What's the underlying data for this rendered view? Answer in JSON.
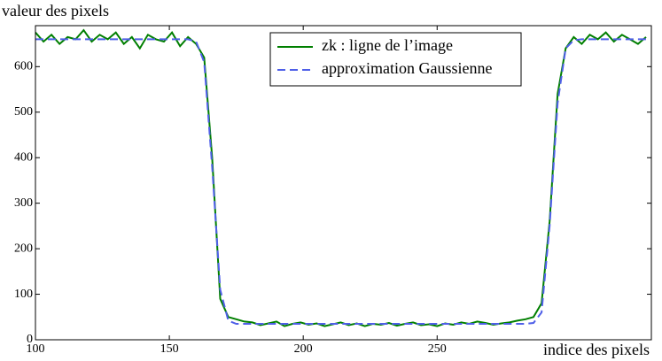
{
  "chart_data": {
    "type": "line",
    "xlabel": "indice des pixels",
    "ylabel": "valeur des pixels",
    "x": [
      100,
      103,
      106,
      109,
      112,
      115,
      118,
      121,
      124,
      127,
      130,
      133,
      136,
      139,
      142,
      145,
      148,
      151,
      154,
      157,
      160,
      163,
      166,
      169,
      172,
      175,
      178,
      181,
      184,
      187,
      190,
      193,
      196,
      199,
      202,
      205,
      208,
      211,
      214,
      217,
      220,
      223,
      226,
      229,
      232,
      235,
      238,
      241,
      244,
      247,
      250,
      253,
      256,
      259,
      262,
      265,
      268,
      271,
      274,
      277,
      280,
      283,
      286,
      289,
      292,
      295,
      298,
      301,
      304,
      307,
      310,
      313,
      316,
      319,
      322,
      325,
      328
    ],
    "series": [
      {
        "name": "zk : ligne de l’image",
        "color": "#007f00",
        "dash": false,
        "values": [
          675,
          655,
          670,
          650,
          665,
          660,
          680,
          655,
          670,
          660,
          675,
          650,
          665,
          640,
          670,
          660,
          655,
          675,
          645,
          665,
          650,
          620,
          400,
          90,
          50,
          45,
          40,
          38,
          32,
          36,
          40,
          30,
          35,
          38,
          33,
          36,
          30,
          34,
          38,
          32,
          36,
          30,
          35,
          33,
          37,
          31,
          35,
          38,
          32,
          34,
          30,
          36,
          33,
          38,
          35,
          40,
          37,
          33,
          36,
          38,
          42,
          45,
          50,
          80,
          260,
          540,
          640,
          665,
          650,
          670,
          660,
          675,
          655,
          670,
          660,
          650,
          665
        ]
      },
      {
        "name": "approximation Gaussienne",
        "color": "#4f5fe8",
        "dash": true,
        "values": [
          660,
          660,
          660,
          660,
          660,
          660,
          660,
          660,
          660,
          660,
          660,
          660,
          660,
          660,
          660,
          660,
          660,
          660,
          660,
          660,
          655,
          610,
          380,
          110,
          42,
          35,
          35,
          35,
          35,
          35,
          35,
          35,
          35,
          35,
          35,
          35,
          35,
          35,
          35,
          35,
          35,
          35,
          35,
          35,
          35,
          35,
          35,
          35,
          35,
          35,
          35,
          35,
          35,
          35,
          35,
          35,
          35,
          35,
          35,
          35,
          35,
          35,
          37,
          60,
          250,
          520,
          640,
          658,
          660,
          660,
          660,
          660,
          660,
          660,
          660,
          660,
          660
        ]
      }
    ],
    "xlim": [
      100,
      330
    ],
    "xticks": [
      100,
      150,
      200,
      250
    ],
    "ylim": [
      0,
      690
    ],
    "yticks": [
      0,
      100,
      200,
      300,
      400,
      500,
      600
    ],
    "legend": "upper center"
  }
}
